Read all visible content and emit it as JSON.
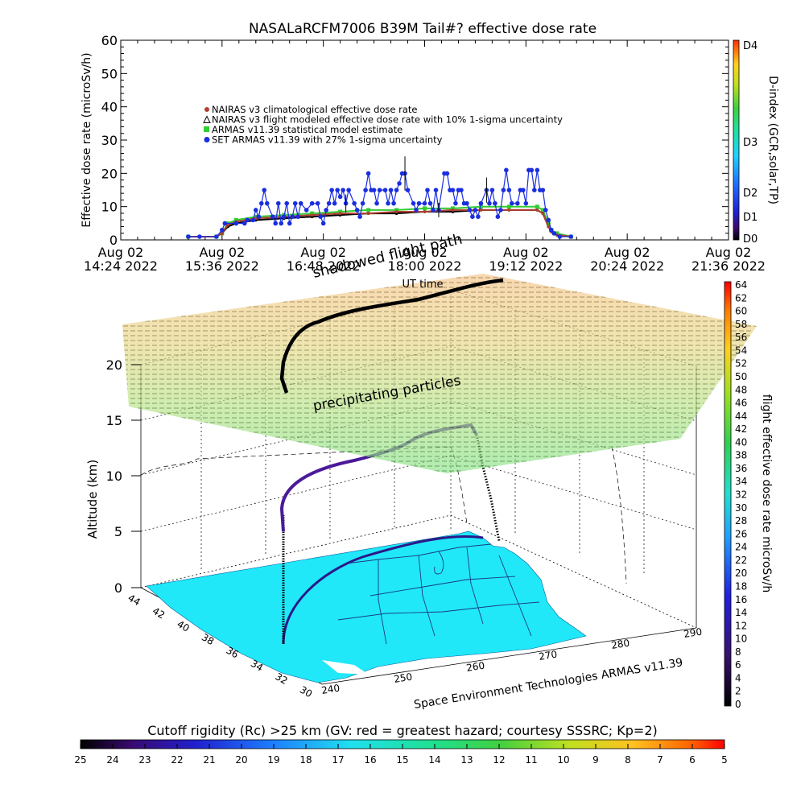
{
  "chart_data": [
    {
      "type": "line",
      "title": "NASALaRCFM7006  B39M Tail#? effective dose rate",
      "ylabel": "Effective dose rate (microSv/h)",
      "ylim": [
        0,
        60
      ],
      "yticks": [
        "0",
        "10",
        "20",
        "30",
        "40",
        "50",
        "60"
      ],
      "x_tick_labels": [
        {
          "date": "Aug 02",
          "time": "14:24 2022"
        },
        {
          "date": "Aug 02",
          "time": "15:36 2022"
        },
        {
          "date": "Aug 02",
          "time": "16:48 2022"
        },
        {
          "date": "Aug 02",
          "time": "18:00 2022"
        },
        {
          "date": "Aug 02",
          "time": "19:12 2022"
        },
        {
          "date": "Aug 02",
          "time": "20:24 2022"
        },
        {
          "date": "Aug 02",
          "time": "21:36 2022"
        }
      ],
      "x_minutes": [
        864,
        1296
      ],
      "xlabel": "UT time",
      "legend": [
        "NAIRAS v3 climatological effective dose rate",
        "NAIRAS v3 flight modeled effective dose rate with 10% 1-sigma uncertainty",
        "ARMAS v11.39 statistical model estimate",
        "SET ARMAS v11.39 with 27% 1-sigma uncertainty"
      ],
      "legend_colors": [
        "#b04030",
        "#000000",
        "#33cc33",
        "#1a2ee0"
      ],
      "colorbar_label": "D-index (GCR,solar,TP)",
      "colorbar_ticks": [
        "D4",
        "D3",
        "D2",
        "D1",
        "D0"
      ],
      "series": [
        {
          "name": "SET ARMAS v11.39 with 27% 1-sigma uncertainty",
          "color": "#1a2ee0",
          "points": [
            [
              912,
              0
            ],
            [
              920,
              0
            ],
            [
              932,
              0
            ],
            [
              936,
              2
            ],
            [
              938,
              4
            ],
            [
              946,
              4
            ],
            [
              952,
              4
            ],
            [
              954,
              5
            ],
            [
              958,
              5
            ],
            [
              960,
              8
            ],
            [
              962,
              6
            ],
            [
              964,
              10
            ],
            [
              966,
              14
            ],
            [
              968,
              10
            ],
            [
              972,
              6
            ],
            [
              974,
              4
            ],
            [
              976,
              10
            ],
            [
              978,
              4
            ],
            [
              980,
              6
            ],
            [
              982,
              10
            ],
            [
              984,
              4
            ],
            [
              986,
              6
            ],
            [
              988,
              10
            ],
            [
              990,
              6
            ],
            [
              992,
              10
            ],
            [
              996,
              8
            ],
            [
              1000,
              10
            ],
            [
              1004,
              10
            ],
            [
              1006,
              6
            ],
            [
              1008,
              4
            ],
            [
              1010,
              8
            ],
            [
              1012,
              10
            ],
            [
              1014,
              14
            ],
            [
              1016,
              10
            ],
            [
              1018,
              14
            ],
            [
              1020,
              12
            ],
            [
              1022,
              14
            ],
            [
              1024,
              10
            ],
            [
              1026,
              14
            ],
            [
              1030,
              10
            ],
            [
              1032,
              8
            ],
            [
              1034,
              6
            ],
            [
              1036,
              10
            ],
            [
              1038,
              14
            ],
            [
              1040,
              19
            ],
            [
              1042,
              14
            ],
            [
              1044,
              14
            ],
            [
              1046,
              10
            ],
            [
              1048,
              14
            ],
            [
              1052,
              14
            ],
            [
              1054,
              10
            ],
            [
              1056,
              14
            ],
            [
              1058,
              10
            ],
            [
              1060,
              14
            ],
            [
              1062,
              16
            ],
            [
              1064,
              19
            ],
            [
              1066,
              19
            ],
            [
              1068,
              14
            ],
            [
              1072,
              10
            ],
            [
              1074,
              8
            ],
            [
              1076,
              10
            ],
            [
              1080,
              10
            ],
            [
              1082,
              14
            ],
            [
              1084,
              10
            ],
            [
              1086,
              8
            ],
            [
              1088,
              14
            ],
            [
              1090,
              8
            ],
            [
              1094,
              19
            ],
            [
              1096,
              19
            ],
            [
              1098,
              14
            ],
            [
              1100,
              14
            ],
            [
              1102,
              10
            ],
            [
              1104,
              14
            ],
            [
              1106,
              14
            ],
            [
              1108,
              10
            ],
            [
              1110,
              10
            ],
            [
              1112,
              8
            ],
            [
              1114,
              6
            ],
            [
              1116,
              8
            ],
            [
              1118,
              6
            ],
            [
              1120,
              10
            ],
            [
              1124,
              14
            ],
            [
              1126,
              10
            ],
            [
              1128,
              14
            ],
            [
              1130,
              10
            ],
            [
              1132,
              6
            ],
            [
              1134,
              8
            ],
            [
              1136,
              14
            ],
            [
              1138,
              20
            ],
            [
              1140,
              14
            ],
            [
              1142,
              10
            ],
            [
              1146,
              10
            ],
            [
              1148,
              14
            ],
            [
              1150,
              14
            ],
            [
              1152,
              10
            ],
            [
              1154,
              20
            ],
            [
              1156,
              20
            ],
            [
              1158,
              14
            ],
            [
              1160,
              20
            ],
            [
              1162,
              14
            ],
            [
              1164,
              14
            ],
            [
              1166,
              8
            ],
            [
              1168,
              5
            ],
            [
              1170,
              2
            ],
            [
              1172,
              1
            ],
            [
              1176,
              0
            ],
            [
              1184,
              0
            ]
          ]
        },
        {
          "name": "ARMAS v11.39 statistical model estimate",
          "color": "#33cc33",
          "points": [
            [
              912,
              0
            ],
            [
              932,
              0
            ],
            [
              936,
              1
            ],
            [
              940,
              4
            ],
            [
              946,
              5
            ],
            [
              960,
              6
            ],
            [
              980,
              6.5
            ],
            [
              1000,
              7
            ],
            [
              1020,
              7.5
            ],
            [
              1040,
              8
            ],
            [
              1060,
              8
            ],
            [
              1080,
              8.5
            ],
            [
              1100,
              8.5
            ],
            [
              1120,
              9
            ],
            [
              1140,
              9
            ],
            [
              1160,
              9
            ],
            [
              1164,
              8
            ],
            [
              1168,
              4
            ],
            [
              1170,
              2
            ],
            [
              1174,
              1
            ],
            [
              1184,
              0
            ]
          ]
        },
        {
          "name": "NAIRAS v3 flight modeled effective dose rate with 10% 1-sigma uncertainty",
          "color": "#000000",
          "points": [
            [
              912,
              0
            ],
            [
              932,
              0
            ],
            [
              936,
              1
            ],
            [
              940,
              3
            ],
            [
              946,
              4
            ],
            [
              960,
              5
            ],
            [
              980,
              5.5
            ],
            [
              1000,
              6
            ],
            [
              1020,
              6.5
            ],
            [
              1040,
              7
            ],
            [
              1060,
              7
            ],
            [
              1080,
              7.5
            ],
            [
              1100,
              7.5
            ],
            [
              1120,
              8
            ],
            [
              1140,
              8
            ],
            [
              1160,
              8
            ],
            [
              1164,
              7
            ],
            [
              1168,
              3
            ],
            [
              1170,
              1.5
            ],
            [
              1174,
              0.5
            ],
            [
              1184,
              0
            ]
          ]
        },
        {
          "name": "NAIRAS v3 climatological effective dose rate",
          "color": "#b04030",
          "points": [
            [
              912,
              0
            ],
            [
              932,
              0
            ],
            [
              936,
              1
            ],
            [
              940,
              3.5
            ],
            [
              946,
              4.5
            ],
            [
              960,
              5.5
            ],
            [
              980,
              6
            ],
            [
              1000,
              6.5
            ],
            [
              1020,
              7
            ],
            [
              1040,
              7
            ],
            [
              1060,
              7.5
            ],
            [
              1080,
              7.5
            ],
            [
              1100,
              8
            ],
            [
              1120,
              8
            ],
            [
              1140,
              8
            ],
            [
              1160,
              8
            ],
            [
              1164,
              7
            ],
            [
              1168,
              3
            ],
            [
              1170,
              1.5
            ],
            [
              1174,
              0.5
            ],
            [
              1184,
              0
            ]
          ]
        }
      ]
    },
    {
      "type": "scatter",
      "title": "",
      "annotations": [
        "shadowed flight path",
        "precipitating particles",
        "UT time",
        "Space Environment Technologies ARMAS v11.39"
      ],
      "zlabel": "Altitude (km)",
      "zticks": [
        "0",
        "5",
        "10",
        "15",
        "20"
      ],
      "lat_ticks": [
        "44",
        "42",
        "40",
        "38",
        "36",
        "34",
        "32",
        "30"
      ],
      "lon_ticks": [
        "240",
        "250",
        "260",
        "270",
        "280",
        "290"
      ],
      "colorbar_label": "flight effective dose rate microSv/h",
      "colorbar_ticks": [
        "0",
        "2",
        "4",
        "6",
        "8",
        "10",
        "12",
        "14",
        "16",
        "18",
        "20",
        "22",
        "24",
        "26",
        "28",
        "30",
        "32",
        "34",
        "36",
        "38",
        "40",
        "42",
        "44",
        "46",
        "48",
        "50",
        "52",
        "54",
        "56",
        "58",
        "60",
        "62",
        "64"
      ],
      "colorbar_range": [
        0,
        64
      ]
    },
    {
      "type": "heatmap",
      "title": "Cutoff rigidity (Rc) >25 km (GV: red = greatest hazard; courtesy SSSRC; Kp=2)",
      "colorbar_ticks": [
        "25",
        "24",
        "23",
        "22",
        "21",
        "20",
        "19",
        "18",
        "17",
        "16",
        "15",
        "14",
        "13",
        "12",
        "11",
        "10",
        "9",
        "8",
        "7",
        "6",
        "5"
      ],
      "range": [
        25,
        5
      ]
    }
  ]
}
